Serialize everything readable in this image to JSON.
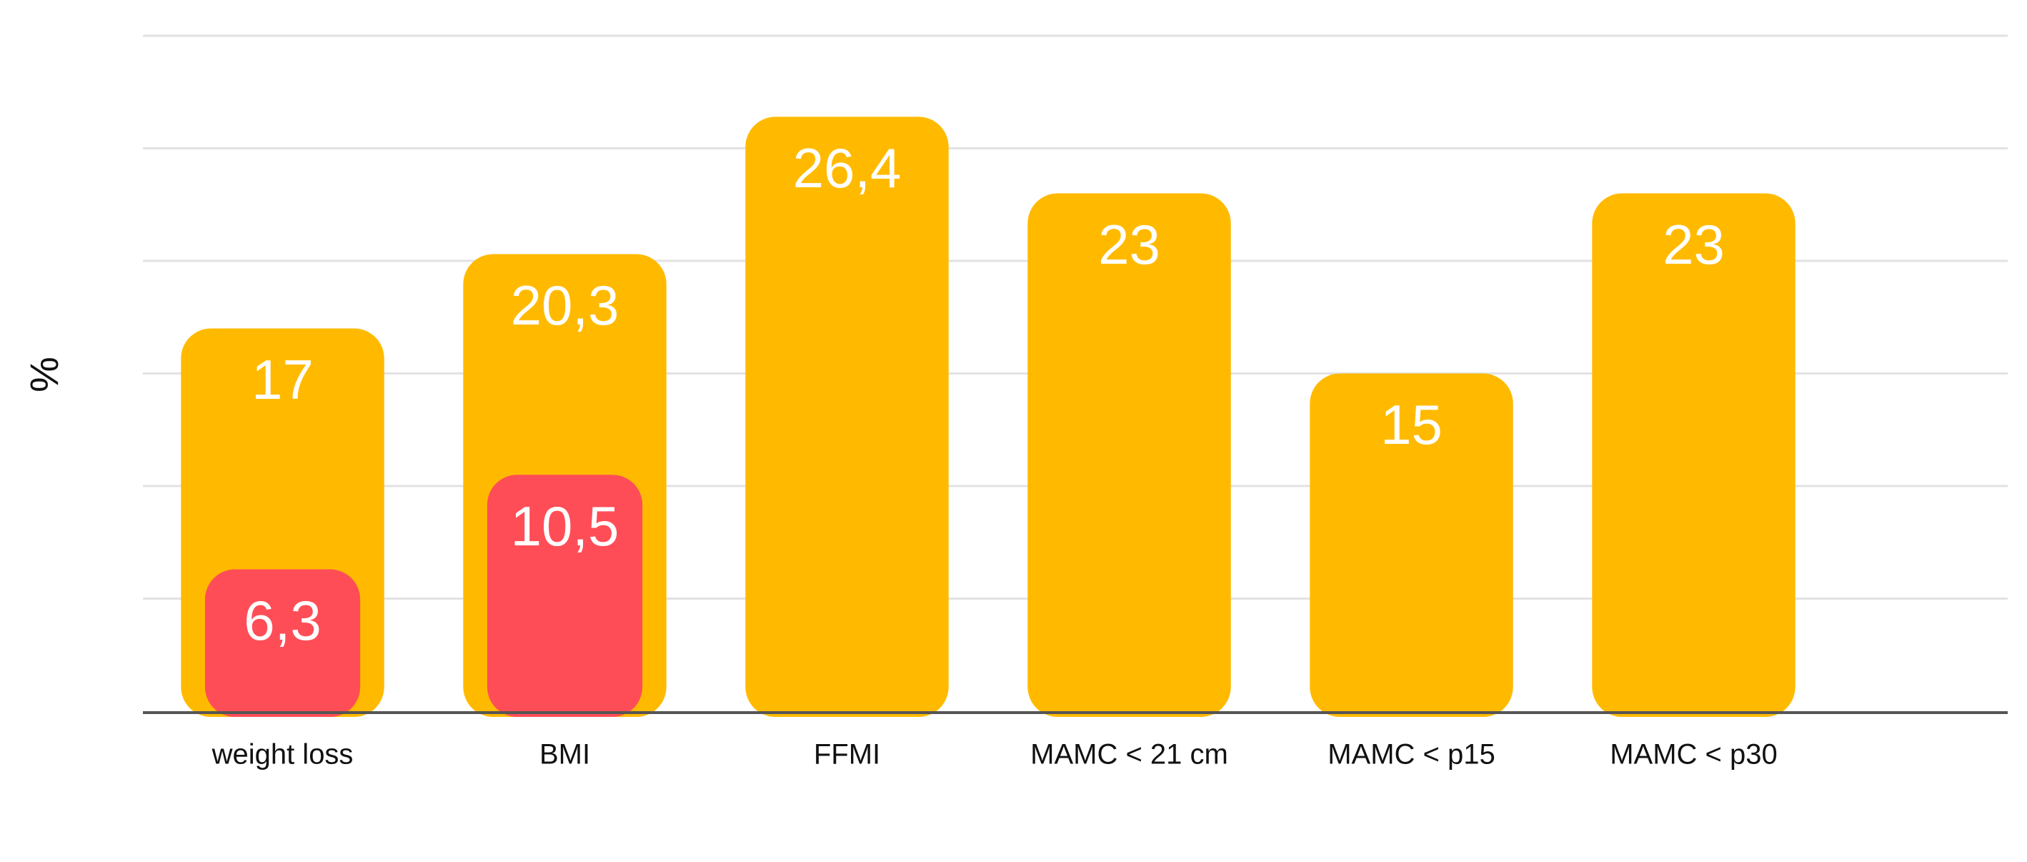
{
  "chart_data": {
    "type": "bar",
    "y_label": "%",
    "categories": [
      "weight loss",
      "BMI",
      "FFMI",
      "MAMC < 21 cm",
      "MAMC < p15",
      "MAMC < p30"
    ],
    "series": [
      {
        "color": "#ffba00",
        "values": [
          17,
          20.3,
          26.4,
          23,
          15,
          23
        ],
        "value_labels": [
          "17",
          "20,3",
          "26,4",
          "23",
          "15",
          "23"
        ]
      },
      {
        "color": "#ff4d57",
        "values": [
          6.3,
          10.5,
          null,
          null,
          null,
          null
        ],
        "value_labels": [
          "6,3",
          "10,5",
          null,
          null,
          null,
          null
        ]
      }
    ],
    "ylim": [
      0,
      30
    ],
    "ygrid": [
      5,
      10,
      15,
      20,
      25,
      30
    ],
    "grid": true
  }
}
